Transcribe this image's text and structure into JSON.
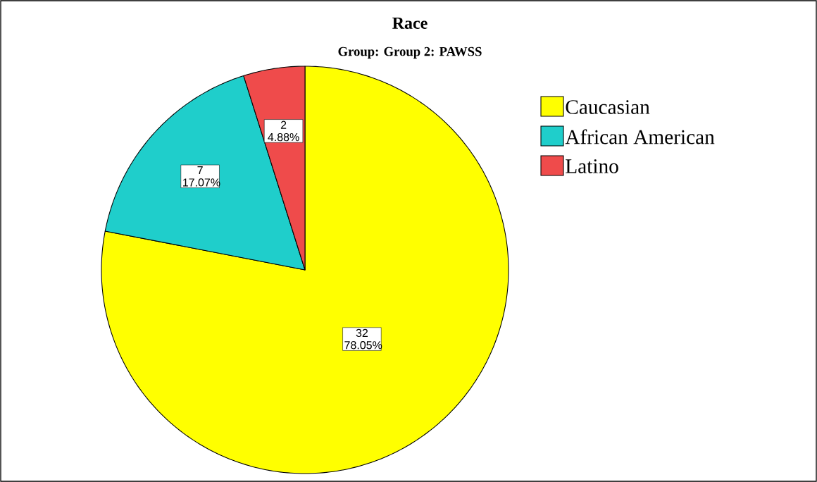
{
  "chart_data": {
    "type": "pie",
    "title": "Race",
    "subtitle": "Group: Group 2: PAWSS",
    "categories": [
      "Caucasian",
      "African American",
      "Latino"
    ],
    "values": [
      32,
      7,
      2
    ],
    "colors": [
      "#ffff00",
      "#1fcecb",
      "#ef4b4b"
    ],
    "value_labels": [
      "32 78.05%",
      "7 17.07%",
      "2 4.88%"
    ],
    "legend": "right"
  }
}
